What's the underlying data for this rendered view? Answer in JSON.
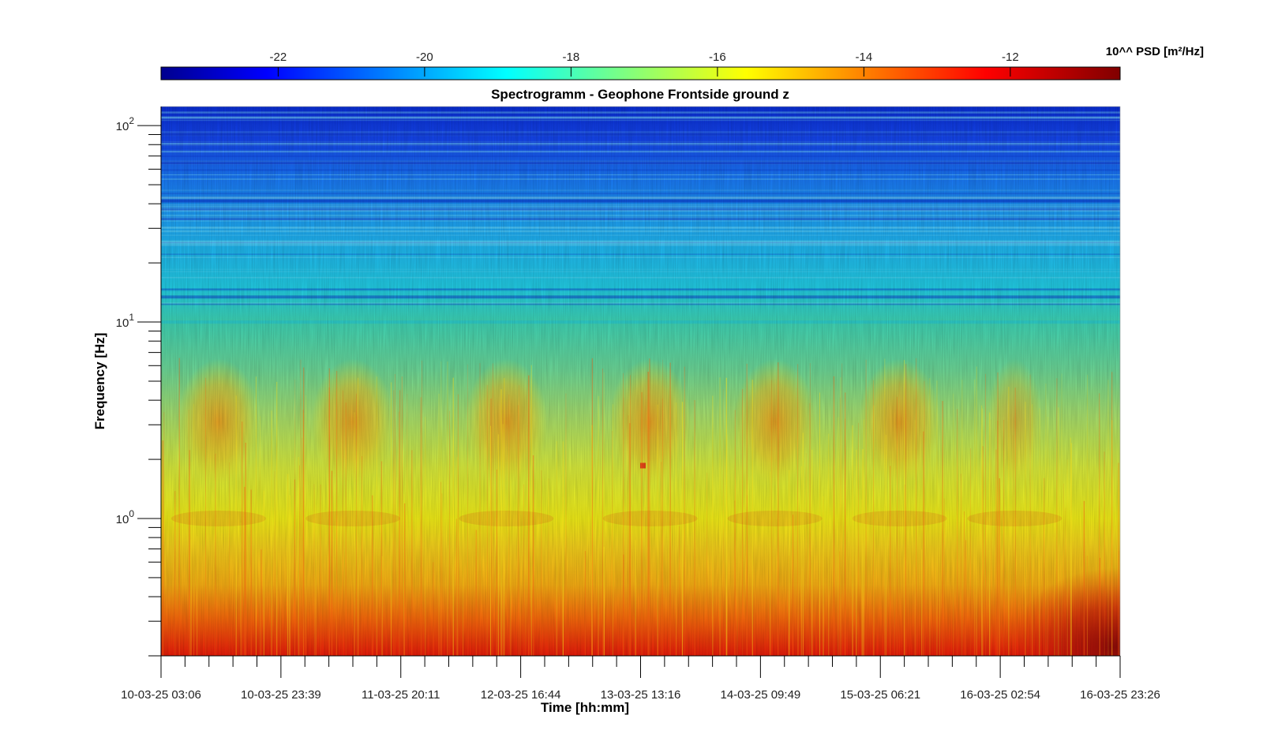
{
  "chart_data": {
    "type": "heatmap",
    "title": "Spectrogramm - Geophone Frontside ground z",
    "xlabel": "Time [hh:mm]",
    "ylabel": "Frequency [Hz]",
    "y_scale": "log",
    "ylim": [
      0.2,
      125
    ],
    "x_ticks": [
      "10-03-25 03:06",
      "10-03-25 23:39",
      "11-03-25 20:11",
      "12-03-25 16:44",
      "13-03-25 13:16",
      "14-03-25 09:49",
      "15-03-25 06:21",
      "16-03-25 02:54",
      "16-03-25 23:26"
    ],
    "y_ticks": [
      {
        "base": "10",
        "exp": "0",
        "value": 1
      },
      {
        "base": "10",
        "exp": "1",
        "value": 10
      },
      {
        "base": "10",
        "exp": "2",
        "value": 100
      }
    ],
    "colorbar": {
      "label": "10^^ PSD [m²/Hz]",
      "range": [
        -23.6,
        -10.5
      ],
      "ticks": [
        "-22",
        "-20",
        "-18",
        "-16",
        "-14",
        "-12"
      ],
      "tick_values": [
        -22,
        -20,
        -18,
        -16,
        -14,
        -12
      ],
      "colormap": "jet",
      "colors": [
        "#00008f",
        "#0000ff",
        "#00ffff",
        "#ffff00",
        "#ff0000",
        "#800000"
      ]
    },
    "grid": false
  }
}
